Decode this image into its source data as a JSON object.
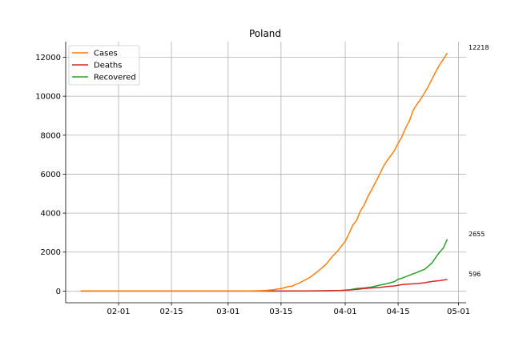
{
  "chart_data": {
    "type": "line",
    "title": "Poland",
    "xlabel": "",
    "ylabel": "",
    "x_range": [
      "2020-01-22",
      "2020-04-29"
    ],
    "xlim": [
      "2020-01-18",
      "2020-05-03"
    ],
    "ylim": [
      -600,
      12800
    ],
    "grid": true,
    "legend": "top-left",
    "x_ticks": [
      {
        "date": "2020-02-01",
        "label": "02-01"
      },
      {
        "date": "2020-02-15",
        "label": "02-15"
      },
      {
        "date": "2020-03-01",
        "label": "03-01"
      },
      {
        "date": "2020-03-15",
        "label": "03-15"
      },
      {
        "date": "2020-04-01",
        "label": "04-01"
      },
      {
        "date": "2020-04-15",
        "label": "04-15"
      },
      {
        "date": "2020-05-01",
        "label": "05-01"
      }
    ],
    "y_ticks": [
      0,
      2000,
      4000,
      6000,
      8000,
      10000,
      12000
    ],
    "series": [
      {
        "name": "Cases",
        "color": "#ff7f0e",
        "end_label": "12218",
        "points": [
          [
            "2020-01-22",
            0
          ],
          [
            "2020-03-03",
            0
          ],
          [
            "2020-03-04",
            1
          ],
          [
            "2020-03-06",
            5
          ],
          [
            "2020-03-08",
            11
          ],
          [
            "2020-03-10",
            22
          ],
          [
            "2020-03-11",
            31
          ],
          [
            "2020-03-12",
            51
          ],
          [
            "2020-03-13",
            68
          ],
          [
            "2020-03-14",
            104
          ],
          [
            "2020-03-15",
            125
          ],
          [
            "2020-03-16",
            177
          ],
          [
            "2020-03-17",
            238
          ],
          [
            "2020-03-18",
            251
          ],
          [
            "2020-03-19",
            355
          ],
          [
            "2020-03-20",
            425
          ],
          [
            "2020-03-21",
            536
          ],
          [
            "2020-03-22",
            634
          ],
          [
            "2020-03-23",
            749
          ],
          [
            "2020-03-24",
            901
          ],
          [
            "2020-03-25",
            1051
          ],
          [
            "2020-03-26",
            1221
          ],
          [
            "2020-03-27",
            1389
          ],
          [
            "2020-03-28",
            1638
          ],
          [
            "2020-03-29",
            1862
          ],
          [
            "2020-03-30",
            2055
          ],
          [
            "2020-03-31",
            2311
          ],
          [
            "2020-04-01",
            2554
          ],
          [
            "2020-04-02",
            2946
          ],
          [
            "2020-04-03",
            3383
          ],
          [
            "2020-04-04",
            3627
          ],
          [
            "2020-04-05",
            4102
          ],
          [
            "2020-04-06",
            4413
          ],
          [
            "2020-04-07",
            4848
          ],
          [
            "2020-04-08",
            5205
          ],
          [
            "2020-04-09",
            5575
          ],
          [
            "2020-04-10",
            5955
          ],
          [
            "2020-04-11",
            6356
          ],
          [
            "2020-04-12",
            6674
          ],
          [
            "2020-04-13",
            6934
          ],
          [
            "2020-04-14",
            7202
          ],
          [
            "2020-04-15",
            7582
          ],
          [
            "2020-04-16",
            7918
          ],
          [
            "2020-04-17",
            8379
          ],
          [
            "2020-04-18",
            8742
          ],
          [
            "2020-04-19",
            9287
          ],
          [
            "2020-04-20",
            9593
          ],
          [
            "2020-04-21",
            9856
          ],
          [
            "2020-04-22",
            10169
          ],
          [
            "2020-04-23",
            10511
          ],
          [
            "2020-04-24",
            10892
          ],
          [
            "2020-04-25",
            11273
          ],
          [
            "2020-04-26",
            11617
          ],
          [
            "2020-04-27",
            11902
          ],
          [
            "2020-04-28",
            12218
          ]
        ]
      },
      {
        "name": "Deaths",
        "color": "#d62728",
        "end_label": "596",
        "points": [
          [
            "2020-01-22",
            0
          ],
          [
            "2020-03-12",
            0
          ],
          [
            "2020-03-14",
            3
          ],
          [
            "2020-03-18",
            5
          ],
          [
            "2020-03-22",
            7
          ],
          [
            "2020-03-26",
            16
          ],
          [
            "2020-03-28",
            23
          ],
          [
            "2020-03-31",
            33
          ],
          [
            "2020-04-02",
            57
          ],
          [
            "2020-04-04",
            84
          ],
          [
            "2020-04-06",
            129
          ],
          [
            "2020-04-08",
            159
          ],
          [
            "2020-04-10",
            181
          ],
          [
            "2020-04-12",
            232
          ],
          [
            "2020-04-14",
            263
          ],
          [
            "2020-04-16",
            332
          ],
          [
            "2020-04-18",
            362
          ],
          [
            "2020-04-20",
            380
          ],
          [
            "2020-04-22",
            426
          ],
          [
            "2020-04-24",
            494
          ],
          [
            "2020-04-26",
            535
          ],
          [
            "2020-04-28",
            596
          ]
        ]
      },
      {
        "name": "Recovered",
        "color": "#2ca02c",
        "end_label": "2655",
        "points": [
          [
            "2020-01-22",
            0
          ],
          [
            "2020-03-20",
            1
          ],
          [
            "2020-03-25",
            7
          ],
          [
            "2020-03-28",
            11
          ],
          [
            "2020-03-31",
            33
          ],
          [
            "2020-04-02",
            56
          ],
          [
            "2020-04-04",
            129
          ],
          [
            "2020-04-06",
            162
          ],
          [
            "2020-04-08",
            207
          ],
          [
            "2020-04-10",
            298
          ],
          [
            "2020-04-12",
            375
          ],
          [
            "2020-04-14",
            483
          ],
          [
            "2020-04-15",
            609
          ],
          [
            "2020-04-16",
            660
          ],
          [
            "2020-04-18",
            810
          ],
          [
            "2020-04-19",
            888
          ],
          [
            "2020-04-20",
            954
          ],
          [
            "2020-04-21",
            1040
          ],
          [
            "2020-04-22",
            1115
          ],
          [
            "2020-04-23",
            1280
          ],
          [
            "2020-04-24",
            1454
          ],
          [
            "2020-04-25",
            1740
          ],
          [
            "2020-04-26",
            2000
          ],
          [
            "2020-04-27",
            2216
          ],
          [
            "2020-04-28",
            2655
          ]
        ]
      }
    ]
  }
}
